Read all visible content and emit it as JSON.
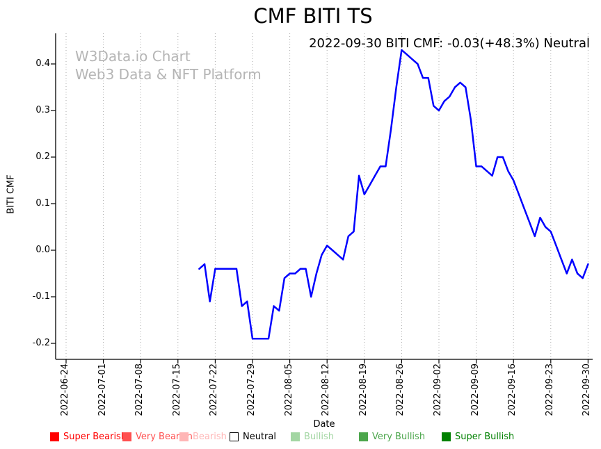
{
  "page": {
    "title": "CMF BITI TS",
    "annotation": "2022-09-30 BITI CMF: -0.03(+48.3%) Neutral",
    "watermark_line1": "W3Data.io Chart",
    "watermark_line2": "Web3 Data & NFT Platform"
  },
  "chart_data": {
    "type": "line",
    "title": "CMF BITI TS",
    "xlabel": "Date",
    "ylabel": "BITI CMF",
    "grid": {
      "vertical_dotted": true,
      "horizontal": false
    },
    "ylim": [
      -0.23,
      0.47
    ],
    "y_ticks": [
      0.4,
      0.3,
      0.2,
      0.1,
      0.0,
      -0.1,
      -0.2
    ],
    "y_tick_labels": [
      "0.4",
      "0.3",
      "0.2",
      "0.1",
      "0.0",
      "-0.1",
      "-0.2"
    ],
    "x_tick_labels": [
      "2022-06-24",
      "2022-07-01",
      "2022-07-08",
      "2022-07-15",
      "2022-07-22",
      "2022-07-29",
      "2022-08-05",
      "2022-08-12",
      "2022-08-19",
      "2022-08-26",
      "2022-09-02",
      "2022-09-09",
      "2022-09-16",
      "2022-09-23",
      "2022-09-30"
    ],
    "line_color": "#0000ff",
    "series": [
      {
        "name": "BITI CMF",
        "dates": [
          "2022-07-19",
          "2022-07-20",
          "2022-07-21",
          "2022-07-22",
          "2022-07-23",
          "2022-07-24",
          "2022-07-25",
          "2022-07-26",
          "2022-07-27",
          "2022-07-28",
          "2022-07-29",
          "2022-07-30",
          "2022-07-31",
          "2022-08-01",
          "2022-08-02",
          "2022-08-03",
          "2022-08-04",
          "2022-08-05",
          "2022-08-06",
          "2022-08-07",
          "2022-08-08",
          "2022-08-09",
          "2022-08-10",
          "2022-08-11",
          "2022-08-12",
          "2022-08-13",
          "2022-08-14",
          "2022-08-15",
          "2022-08-16",
          "2022-08-17",
          "2022-08-18",
          "2022-08-19",
          "2022-08-20",
          "2022-08-21",
          "2022-08-22",
          "2022-08-23",
          "2022-08-24",
          "2022-08-25",
          "2022-08-26",
          "2022-08-27",
          "2022-08-28",
          "2022-08-29",
          "2022-08-30",
          "2022-08-31",
          "2022-09-01",
          "2022-09-02",
          "2022-09-03",
          "2022-09-04",
          "2022-09-05",
          "2022-09-06",
          "2022-09-07",
          "2022-09-08",
          "2022-09-09",
          "2022-09-10",
          "2022-09-11",
          "2022-09-12",
          "2022-09-13",
          "2022-09-14",
          "2022-09-15",
          "2022-09-16",
          "2022-09-17",
          "2022-09-18",
          "2022-09-19",
          "2022-09-20",
          "2022-09-21",
          "2022-09-22",
          "2022-09-23",
          "2022-09-24",
          "2022-09-25",
          "2022-09-26",
          "2022-09-27",
          "2022-09-28",
          "2022-09-29",
          "2022-09-30"
        ],
        "values": [
          -0.04,
          -0.03,
          -0.11,
          -0.04,
          -0.04,
          -0.04,
          -0.04,
          -0.04,
          -0.12,
          -0.11,
          -0.19,
          -0.19,
          -0.19,
          -0.19,
          -0.12,
          -0.13,
          -0.06,
          -0.05,
          -0.05,
          -0.04,
          -0.04,
          -0.1,
          -0.05,
          -0.01,
          0.01,
          0.0,
          -0.01,
          -0.02,
          0.03,
          0.04,
          0.16,
          0.12,
          0.14,
          0.16,
          0.18,
          0.18,
          0.26,
          0.35,
          0.43,
          0.42,
          0.41,
          0.4,
          0.37,
          0.37,
          0.31,
          0.3,
          0.32,
          0.33,
          0.35,
          0.36,
          0.35,
          0.28,
          0.18,
          0.18,
          0.17,
          0.16,
          0.2,
          0.2,
          0.17,
          0.15,
          0.12,
          0.09,
          0.06,
          0.03,
          0.07,
          0.05,
          0.04,
          0.01,
          -0.02,
          -0.05,
          -0.02,
          -0.05,
          -0.06,
          -0.03
        ]
      }
    ],
    "last_point": {
      "date": "2022-09-30",
      "value": -0.03,
      "change": "+48.3%",
      "signal": "Neutral"
    }
  },
  "legend": {
    "items": [
      {
        "label": "Super Bearish",
        "color": "#ff0000",
        "text_color": "#ff0000"
      },
      {
        "label": "Very Bearish",
        "color": "#ff5050",
        "text_color": "#ff5050"
      },
      {
        "label": "Bearish",
        "color": "#ffb6b6",
        "text_color": "#ffb6b6"
      },
      {
        "label": "Neutral",
        "color": "#ffffff",
        "text_color": "#000000"
      },
      {
        "label": "Bullish",
        "color": "#a3d6a3",
        "text_color": "#a3d6a3"
      },
      {
        "label": "Very Bullish",
        "color": "#4ca64c",
        "text_color": "#4ca64c"
      },
      {
        "label": "Super Bullish",
        "color": "#008000",
        "text_color": "#008000"
      }
    ]
  }
}
